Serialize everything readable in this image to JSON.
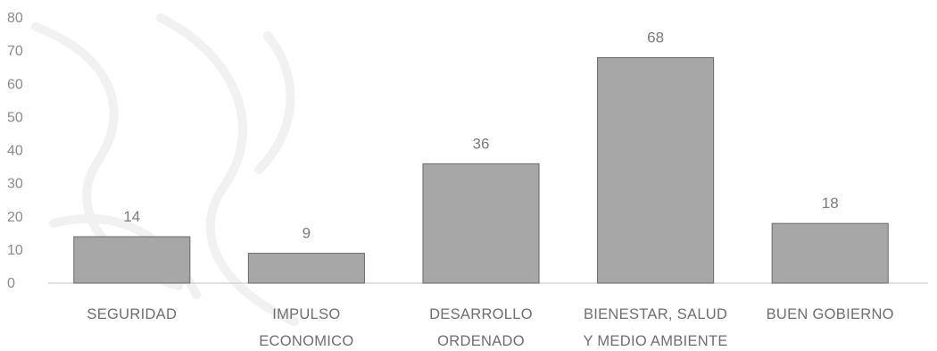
{
  "chart_data": {
    "type": "bar",
    "categories": [
      [
        "SEGURIDAD"
      ],
      [
        "IMPULSO",
        "ECONOMICO"
      ],
      [
        "DESARROLLO",
        "ORDENADO"
      ],
      [
        "BIENESTAR, SALUD",
        "Y MEDIO AMBIENTE"
      ],
      [
        "BUEN GOBIERNO"
      ]
    ],
    "values": [
      14,
      9,
      36,
      68,
      18
    ],
    "data_labels": [
      "14",
      "9",
      "36",
      "68",
      "18"
    ],
    "ylim": [
      0,
      80
    ],
    "yticks": [
      0,
      10,
      20,
      30,
      40,
      50,
      60,
      70,
      80
    ],
    "grid": false,
    "legend": "none",
    "colors": {
      "bar_fill": "#a7a7a7",
      "bar_edge": "#6a6a6a",
      "text": "#7a7a7a",
      "axis": "#cfcfcf"
    }
  }
}
